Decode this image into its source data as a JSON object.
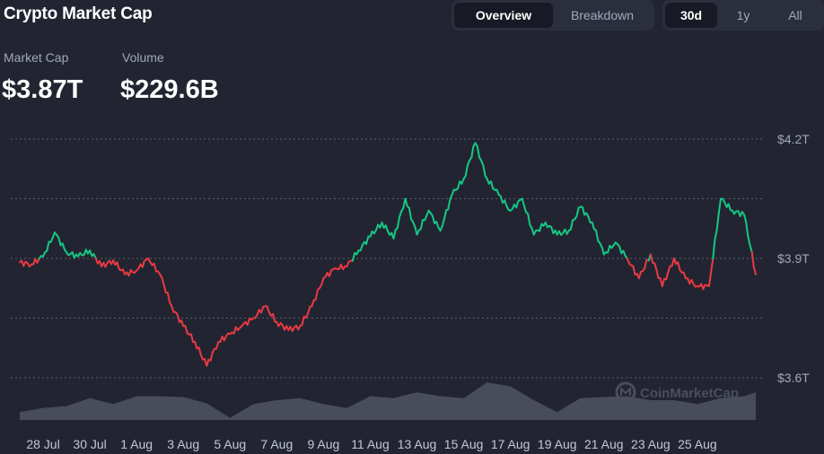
{
  "header": {
    "title": "Crypto Market Cap"
  },
  "view_tabs": [
    {
      "label": "Overview",
      "active": true
    },
    {
      "label": "Breakdown",
      "active": false
    }
  ],
  "range_tabs": [
    {
      "label": "30d",
      "active": true
    },
    {
      "label": "1y",
      "active": false
    },
    {
      "label": "All",
      "active": false
    }
  ],
  "stats": {
    "market_cap_label": "Market Cap",
    "market_cap_value": "$3.87T",
    "volume_label": "Volume",
    "volume_value": "$229.6B"
  },
  "watermark": "CoinMarketCap",
  "colors": {
    "up": "#16c784",
    "down": "#ea3943",
    "volume": "#4d5160",
    "grid": "#5a5e6b",
    "background": "#222531"
  },
  "chart_data": {
    "type": "line",
    "x_tick_labels": [
      "28 Jul",
      "30 Jul",
      "1 Aug",
      "3 Aug",
      "5 Aug",
      "7 Aug",
      "9 Aug",
      "11 Aug",
      "13 Aug",
      "15 Aug",
      "17 Aug",
      "19 Aug",
      "21 Aug",
      "23 Aug",
      "25 Aug"
    ],
    "y_tick_labels": [
      "$4.2T",
      "$3.9T",
      "$3.6T"
    ],
    "y_ticks": [
      4.2,
      3.9,
      3.6
    ],
    "ylim": [
      3.6,
      4.2
    ],
    "grid_lines": [
      4.2,
      4.05,
      3.9,
      3.75,
      3.6
    ],
    "baseline": 3.9,
    "series": [
      {
        "x": [
          0,
          0.5,
          1,
          1.5,
          2,
          2.5,
          3,
          3.5,
          4,
          4.5,
          5,
          5.5,
          6,
          6.5,
          7,
          7.5,
          8,
          8.5,
          9,
          9.5,
          10,
          10.5,
          11,
          11.5,
          12,
          12.5,
          13,
          13.5,
          14,
          14.5,
          15,
          15.5,
          16,
          16.5,
          17,
          17.5,
          18,
          18.5,
          19,
          19.5,
          20,
          20.5,
          21,
          21.5,
          22,
          22.5,
          23,
          23.5,
          24,
          24.5,
          25,
          25.5,
          26,
          26.5,
          27,
          27.5,
          28,
          28.5,
          29,
          29.5,
          30,
          30.5,
          31,
          31.5
        ],
        "values": [
          3.89,
          3.885,
          3.905,
          3.965,
          3.915,
          3.905,
          3.92,
          3.88,
          3.895,
          3.86,
          3.87,
          3.9,
          3.86,
          3.78,
          3.73,
          3.69,
          3.63,
          3.69,
          3.71,
          3.73,
          3.75,
          3.78,
          3.74,
          3.72,
          3.73,
          3.78,
          3.85,
          3.875,
          3.88,
          3.92,
          3.955,
          3.99,
          3.95,
          4.05,
          3.96,
          4.02,
          3.97,
          4.06,
          4.1,
          4.19,
          4.1,
          4.06,
          4.02,
          4.05,
          3.96,
          3.99,
          3.96,
          3.97,
          4.03,
          3.99,
          3.91,
          3.94,
          3.9,
          3.85,
          3.91,
          3.83,
          3.9,
          3.85,
          3.83,
          3.83,
          4.05,
          4.02,
          4.01,
          3.86
        ]
      }
    ],
    "volume": {
      "x": [
        0,
        1,
        2,
        3,
        4,
        5,
        6,
        7,
        8,
        9,
        10,
        11,
        12,
        13,
        14,
        15,
        16,
        17,
        18,
        19,
        20,
        21,
        22,
        23,
        24,
        25,
        26,
        27,
        28,
        29,
        30,
        31,
        31.5
      ],
      "values": [
        0.2,
        0.3,
        0.35,
        0.55,
        0.4,
        0.6,
        0.6,
        0.58,
        0.42,
        0.05,
        0.4,
        0.5,
        0.55,
        0.4,
        0.3,
        0.6,
        0.55,
        0.7,
        0.6,
        0.55,
        0.95,
        0.85,
        0.5,
        0.2,
        0.55,
        0.58,
        0.6,
        0.5,
        0.5,
        0.4,
        0.55,
        0.6,
        0.7
      ]
    }
  }
}
